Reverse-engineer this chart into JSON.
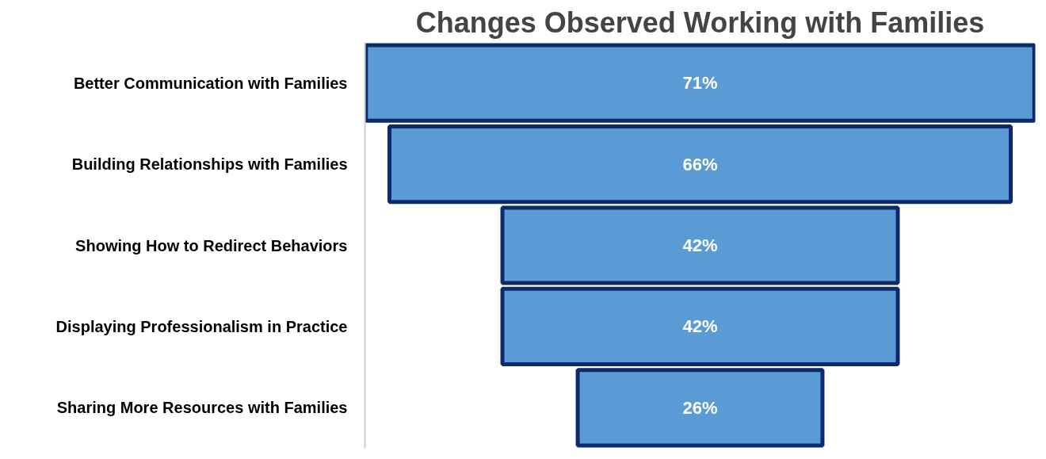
{
  "chart_data": {
    "type": "other",
    "title": "Changes Observed Working with Families",
    "categories": [
      "Better Communication with Families",
      "Building Relationships with Families",
      "Showing How to Redirect Behaviors",
      "Displaying Professionalism in Practice",
      "Sharing More Resources with Families"
    ],
    "values": [
      71,
      66,
      42,
      42,
      26
    ],
    "value_labels": [
      "71%",
      "66%",
      "42%",
      "42%",
      "26%"
    ],
    "color": "#5b9bd5"
  }
}
